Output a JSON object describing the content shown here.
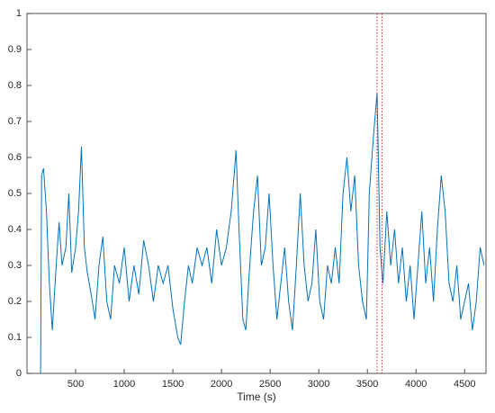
{
  "chart_data": {
    "type": "line",
    "xlabel": "Time (s)",
    "x": [
      140,
      150,
      170,
      200,
      230,
      260,
      300,
      330,
      360,
      400,
      430,
      460,
      500,
      530,
      560,
      590,
      620,
      660,
      700,
      740,
      780,
      820,
      860,
      900,
      950,
      1000,
      1050,
      1100,
      1150,
      1200,
      1250,
      1300,
      1350,
      1400,
      1450,
      1500,
      1550,
      1580,
      1620,
      1660,
      1700,
      1750,
      1800,
      1850,
      1900,
      1950,
      2000,
      2050,
      2100,
      2150,
      2180,
      2220,
      2250,
      2290,
      2330,
      2370,
      2410,
      2450,
      2490,
      2530,
      2570,
      2610,
      2650,
      2690,
      2730,
      2770,
      2810,
      2850,
      2890,
      2930,
      2970,
      3010,
      3050,
      3090,
      3130,
      3170,
      3210,
      3250,
      3290,
      3330,
      3370,
      3410,
      3450,
      3490,
      3520,
      3560,
      3600,
      3630,
      3660,
      3700,
      3740,
      3780,
      3820,
      3860,
      3900,
      3940,
      3980,
      4020,
      4060,
      4100,
      4140,
      4180,
      4220,
      4260,
      4300,
      4340,
      4380,
      4420,
      4460,
      4500,
      4540,
      4580,
      4620,
      4660,
      4700
    ],
    "series": [
      {
        "color": "#0072bd",
        "values": [
          0,
          0.55,
          0.57,
          0.45,
          0.25,
          0.12,
          0.3,
          0.42,
          0.3,
          0.35,
          0.5,
          0.28,
          0.35,
          0.45,
          0.63,
          0.35,
          0.28,
          0.22,
          0.15,
          0.3,
          0.38,
          0.2,
          0.15,
          0.3,
          0.25,
          0.35,
          0.2,
          0.3,
          0.22,
          0.37,
          0.3,
          0.2,
          0.3,
          0.25,
          0.3,
          0.18,
          0.1,
          0.08,
          0.2,
          0.3,
          0.25,
          0.35,
          0.3,
          0.35,
          0.25,
          0.4,
          0.3,
          0.35,
          0.45,
          0.62,
          0.4,
          0.15,
          0.12,
          0.3,
          0.45,
          0.55,
          0.3,
          0.35,
          0.5,
          0.3,
          0.15,
          0.25,
          0.35,
          0.2,
          0.12,
          0.3,
          0.5,
          0.3,
          0.2,
          0.25,
          0.4,
          0.2,
          0.15,
          0.3,
          0.25,
          0.35,
          0.25,
          0.5,
          0.6,
          0.45,
          0.55,
          0.3,
          0.2,
          0.15,
          0.5,
          0.65,
          0.78,
          0.35,
          0.25,
          0.45,
          0.3,
          0.4,
          0.25,
          0.35,
          0.2,
          0.3,
          0.15,
          0.3,
          0.45,
          0.25,
          0.35,
          0.2,
          0.4,
          0.55,
          0.45,
          0.25,
          0.2,
          0.3,
          0.15,
          0.2,
          0.25,
          0.12,
          0.2,
          0.35,
          0.3
        ]
      }
    ],
    "vlines": [
      3600,
      3650
    ],
    "vline_color": "#d62728",
    "xlim": [
      0,
      4720
    ],
    "xticks": [
      500,
      1000,
      1500,
      2000,
      2500,
      3000,
      3500,
      4000,
      4500
    ],
    "ylim": [
      0,
      1
    ],
    "yticks": [
      0,
      0.1,
      0.2,
      0.3,
      0.4,
      0.5,
      0.6,
      0.7,
      0.8,
      0.9,
      1
    ]
  }
}
